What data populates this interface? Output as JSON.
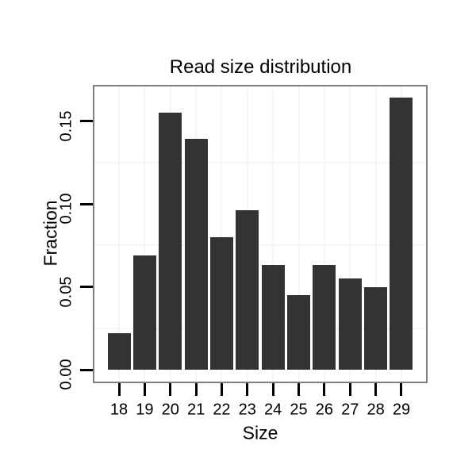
{
  "chart_data": {
    "type": "bar",
    "title": "Read size distribution",
    "xlabel": "Size",
    "ylabel": "Fraction",
    "categories": [
      "18",
      "19",
      "20",
      "21",
      "22",
      "23",
      "24",
      "25",
      "26",
      "27",
      "28",
      "29"
    ],
    "values": [
      0.022,
      0.069,
      0.155,
      0.139,
      0.08,
      0.096,
      0.063,
      0.045,
      0.063,
      0.055,
      0.05,
      0.164
    ],
    "ylim": [
      0,
      0.171
    ],
    "ytick_labels": [
      "0.00",
      "0.05",
      "0.10",
      "0.15"
    ],
    "ytick_values": [
      0,
      0.05,
      0.1,
      0.15
    ],
    "minor_gridline_values": [
      0.025,
      0.075,
      0.125
    ],
    "grid": "faint vertical line at each category; faint horizontal minor lines only",
    "legend_position": "none",
    "colors": {
      "bar_fill": "#333333",
      "panel_border": "#7f7f7f",
      "gridline": "#f5f5f5",
      "text": "#000000",
      "background": "#ffffff"
    }
  }
}
